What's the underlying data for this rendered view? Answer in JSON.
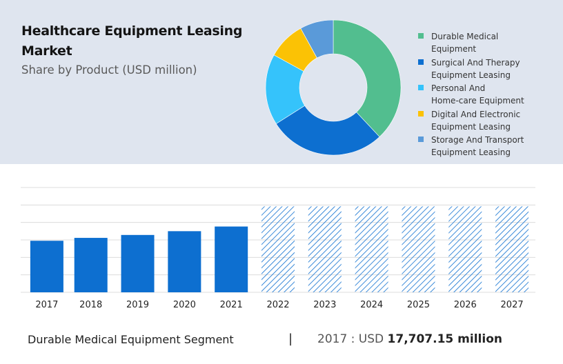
{
  "header": {
    "title": "Healthcare Equipment Leasing Market",
    "subtitle": "Share by Product (USD million)"
  },
  "chart_data": [
    {
      "type": "pie",
      "style": "donut",
      "slices": [
        {
          "label": "Durable Medical\nEquipment",
          "value": 38,
          "color": "#52be8f"
        },
        {
          "label": "Surgical And Therapy\nEquipment Leasing",
          "value": 28,
          "color": "#0d6fd0"
        },
        {
          "label": "Personal And\nHome-care Equipment",
          "value": 17,
          "color": "#35c3fb"
        },
        {
          "label": "Digital And Electronic\nEquipment Leasing",
          "value": 9,
          "color": "#fbc205"
        },
        {
          "label": "Storage And Transport\nEquipment Leasing",
          "value": 8,
          "color": "#5a9ad9"
        }
      ],
      "legend_position": "right"
    },
    {
      "type": "bar",
      "categories": [
        "2017",
        "2018",
        "2019",
        "2020",
        "2021",
        "2022",
        "2023",
        "2024",
        "2025",
        "2026",
        "2027"
      ],
      "values": [
        17707.15,
        18700,
        19700,
        21000,
        22600,
        null,
        null,
        null,
        null,
        null,
        null
      ],
      "forecast_from": "2022",
      "bar_color": "#0d6fd0",
      "forecast_color": "#0d6fd0",
      "ylim": [
        0,
        36000
      ],
      "grid": true
    }
  ],
  "footer": {
    "segment": "Durable Medical Equipment Segment",
    "divider": "|",
    "year_prefix": "2017 : USD ",
    "value": "17,707.15 million"
  }
}
